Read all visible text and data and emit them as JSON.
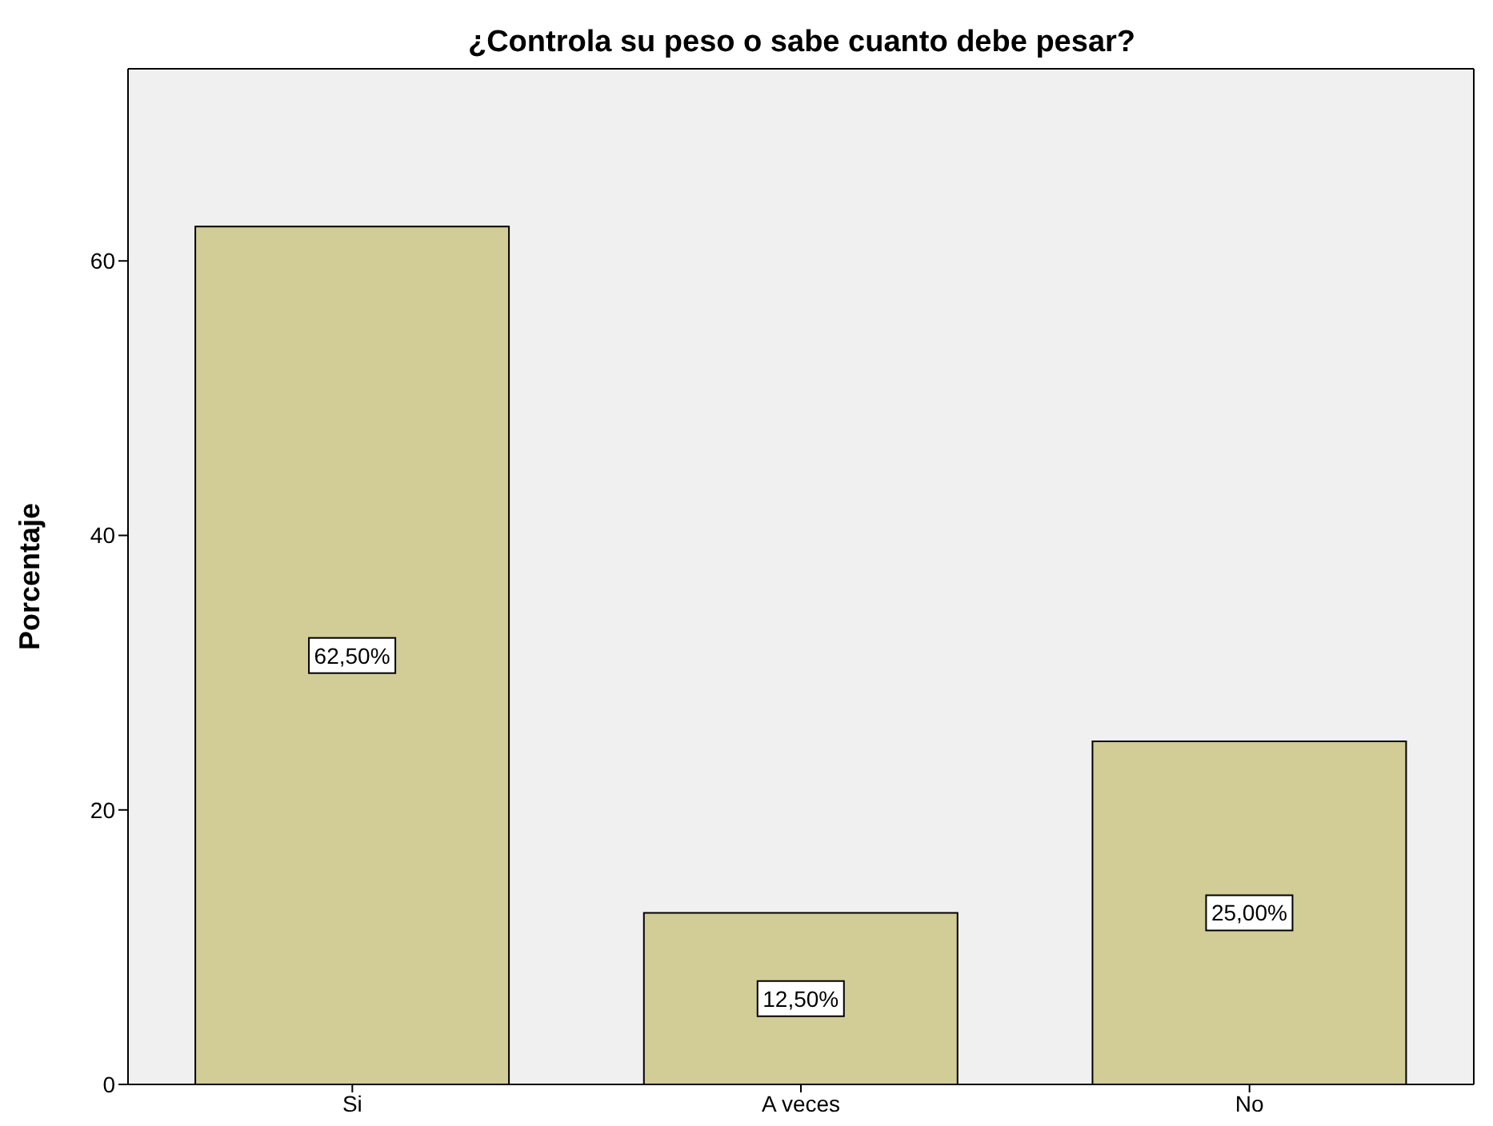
{
  "chart_data": {
    "type": "bar",
    "title": "¿Controla su peso o sabe cuanto debe pesar?",
    "ylabel": "Porcentaje",
    "categories": [
      "Si",
      "A veces",
      "No"
    ],
    "values": [
      62.5,
      12.5,
      25
    ],
    "value_labels": [
      "62,50%",
      "12,50%",
      "25,00%"
    ],
    "color": "#d2cc96",
    "ylim": [
      0,
      74
    ],
    "yticks": [
      0,
      20,
      40,
      60
    ],
    "grid": false
  }
}
